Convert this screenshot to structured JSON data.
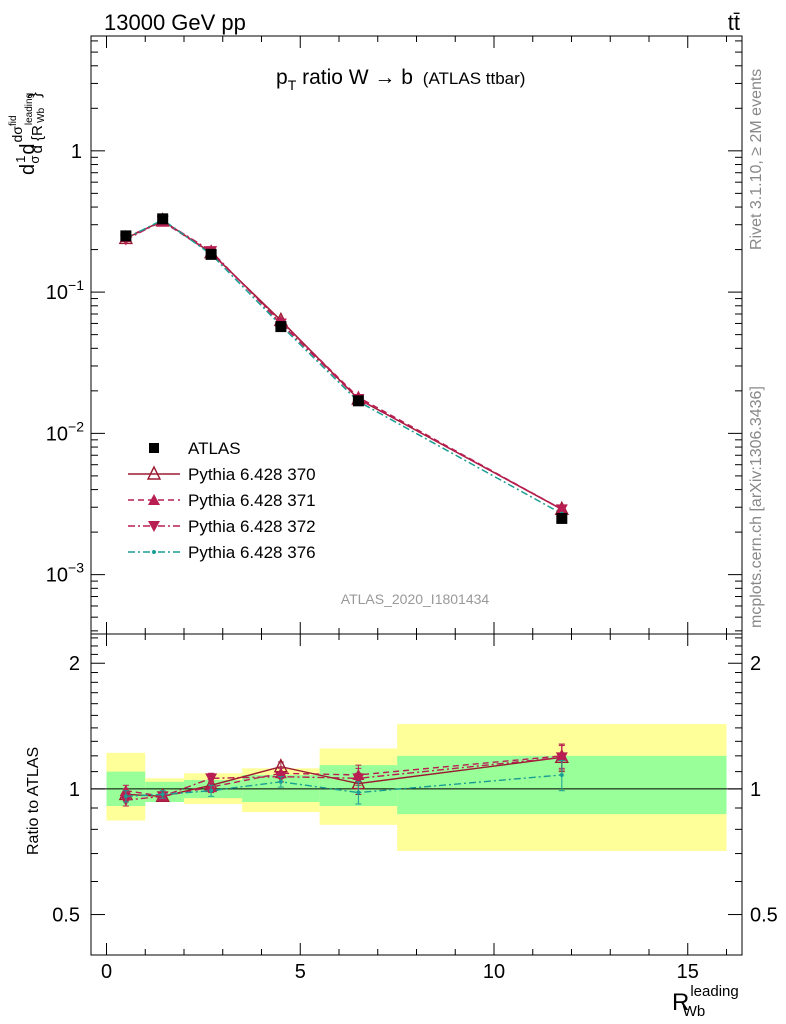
{
  "header": {
    "energy_label": "13000 GeV pp",
    "process_label": "tt̄",
    "side_rivet": "Rivet 3.1.10, ≥ 2M events",
    "side_mcplots": "mcplots.cern.ch [arXiv:1306.3436]",
    "analysis_id": "ATLAS_2020_I1801434"
  },
  "title": {
    "main": "p",
    "main_sub": "T",
    "main_rest": " ratio W → b",
    "suffix": "(ATLAS ttbar)"
  },
  "axes": {
    "y_top_label_parts": [
      "d",
      "1",
      "σ",
      "d",
      "dσ",
      "fid",
      "d {R",
      "leading",
      "Wb",
      "}"
    ],
    "ratio_ylabel": "Ratio to ATLAS",
    "xlabel_main": "R",
    "xlabel_sup": "leading",
    "xlabel_sub": "Wb",
    "x_ticks": [
      "0",
      "5",
      "10",
      "15"
    ],
    "top_y_ticks": [
      {
        "mant": "10",
        "exp": "−3"
      },
      {
        "mant": "10",
        "exp": "−2"
      },
      {
        "mant": "10",
        "exp": "−1"
      },
      {
        "mant": "1",
        "exp": ""
      }
    ],
    "ratio_y_ticks": [
      "0.5",
      "1",
      "2"
    ]
  },
  "chart_data": {
    "type": "scatter",
    "x_range": [
      -0.4,
      16.4
    ],
    "y_range_top": [
      0.00038,
      6.5
    ],
    "y_scale_top": "log",
    "y_range_ratio": [
      0.4,
      2.35
    ],
    "y_scale_ratio": "log",
    "legend_position": "bottom-left",
    "bins": [
      [
        0,
        1
      ],
      [
        1,
        2
      ],
      [
        2,
        3.5
      ],
      [
        3.5,
        5.5
      ],
      [
        5.5,
        7.5
      ],
      [
        7.5,
        16
      ]
    ],
    "bin_centers": [
      0.5,
      1.45,
      2.7,
      4.5,
      6.5,
      11.75
    ],
    "series": [
      {
        "name": "ATLAS",
        "color": "#000000",
        "marker": "square",
        "style": "none",
        "values": [
          0.25,
          0.33,
          0.185,
          0.057,
          0.017,
          0.0025
        ],
        "ratio": [
          1.0,
          1.0,
          1.0,
          1.0,
          1.0,
          1.0
        ]
      },
      {
        "name": "Pythia 6.428 370",
        "color": "#9b1b30",
        "marker": "triangle-open",
        "style": "solid",
        "values": [
          0.24,
          0.32,
          0.19,
          0.063,
          0.0175,
          0.0029
        ],
        "ratio": [
          0.97,
          0.96,
          1.02,
          1.13,
          1.03,
          1.19
        ],
        "ratio_err": [
          0.03,
          0.02,
          0.03,
          0.03,
          0.06,
          0.09
        ]
      },
      {
        "name": "Pythia 6.428 371",
        "color": "#b81e52",
        "marker": "triangle-up",
        "style": "dash",
        "values": [
          0.245,
          0.315,
          0.19,
          0.062,
          0.018,
          0.0029
        ],
        "ratio": [
          0.99,
          0.96,
          1.01,
          1.09,
          1.08,
          1.2
        ],
        "ratio_err": [
          0.03,
          0.02,
          0.03,
          0.03,
          0.06,
          0.08
        ]
      },
      {
        "name": "Pythia 6.428 372",
        "color": "#b81e52",
        "marker": "triangle-down",
        "style": "dashdot",
        "values": [
          0.235,
          0.32,
          0.195,
          0.06,
          0.0175,
          0.0029
        ],
        "ratio": [
          0.94,
          0.96,
          1.06,
          1.07,
          1.06,
          1.19
        ],
        "ratio_err": [
          0.03,
          0.02,
          0.03,
          0.03,
          0.06,
          0.08
        ]
      },
      {
        "name": "Pythia 6.428 376",
        "color": "#1a9e93",
        "marker": "dot",
        "style": "dashdot",
        "values": [
          0.24,
          0.325,
          0.185,
          0.058,
          0.0168,
          0.0027
        ],
        "ratio": [
          0.96,
          0.97,
          0.99,
          1.04,
          0.98,
          1.08
        ],
        "ratio_err": [
          0.03,
          0.02,
          0.03,
          0.03,
          0.06,
          0.09
        ]
      }
    ],
    "band_green": [
      [
        0.91,
        1.1
      ],
      [
        0.93,
        1.04
      ],
      [
        0.95,
        1.05
      ],
      [
        0.93,
        1.08
      ],
      [
        0.91,
        1.14
      ],
      [
        0.87,
        1.2
      ]
    ],
    "band_yellow": [
      [
        0.84,
        1.22
      ],
      [
        0.94,
        1.06
      ],
      [
        0.92,
        1.09
      ],
      [
        0.88,
        1.12
      ],
      [
        0.82,
        1.25
      ],
      [
        0.71,
        1.43
      ]
    ]
  }
}
